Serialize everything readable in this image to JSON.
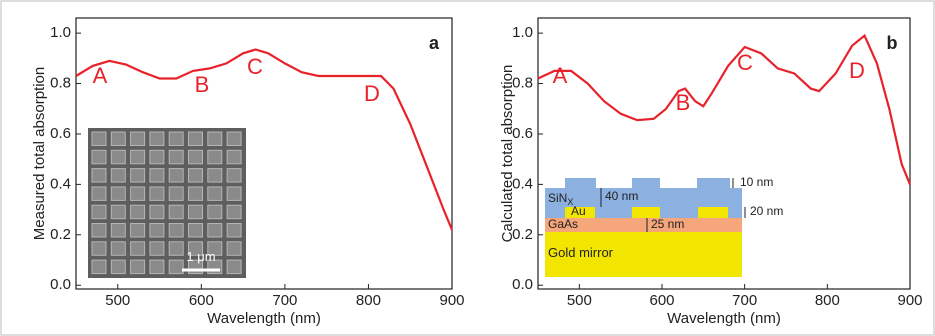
{
  "chart_data": [
    {
      "type": "line",
      "panel_label": "a",
      "xlabel": "Wavelength (nm)",
      "ylabel": "Measured total absorption",
      "x": [
        450,
        470,
        490,
        510,
        530,
        550,
        570,
        590,
        610,
        630,
        650,
        665,
        680,
        700,
        720,
        740,
        760,
        780,
        800,
        815,
        830,
        850,
        870,
        890,
        900
      ],
      "values": [
        0.83,
        0.87,
        0.89,
        0.875,
        0.845,
        0.82,
        0.82,
        0.85,
        0.86,
        0.88,
        0.92,
        0.935,
        0.92,
        0.88,
        0.845,
        0.83,
        0.83,
        0.83,
        0.83,
        0.83,
        0.78,
        0.64,
        0.47,
        0.3,
        0.22
      ],
      "color": "#e8222a",
      "xlim": [
        450,
        900
      ],
      "ylim": [
        -0.015,
        1.06
      ],
      "xticks": [
        500,
        600,
        700,
        800,
        900
      ],
      "yticks": [
        {
          "value": 0,
          "label": "0.0"
        },
        {
          "value": 0.2,
          "label": "0.2"
        },
        {
          "value": 0.4,
          "label": "0.4"
        },
        {
          "value": 0.6,
          "label": "0.6"
        },
        {
          "value": 0.8,
          "label": "0.8"
        },
        {
          "value": 1,
          "label": "1.0"
        }
      ],
      "annotations": [
        "A",
        "B",
        "C",
        "D"
      ],
      "inset_labels": [
        "1 μm"
      ]
    },
    {
      "type": "line",
      "panel_label": "b",
      "xlabel": "Wavelength (nm)",
      "ylabel": "Calculated total absorption",
      "x": [
        450,
        470,
        490,
        510,
        530,
        550,
        570,
        590,
        605,
        620,
        628,
        640,
        650,
        660,
        680,
        700,
        720,
        740,
        760,
        780,
        790,
        810,
        830,
        845,
        860,
        875,
        890,
        900
      ],
      "values": [
        0.82,
        0.85,
        0.85,
        0.8,
        0.73,
        0.68,
        0.655,
        0.66,
        0.7,
        0.77,
        0.78,
        0.73,
        0.71,
        0.76,
        0.87,
        0.945,
        0.92,
        0.86,
        0.84,
        0.78,
        0.77,
        0.84,
        0.95,
        0.99,
        0.88,
        0.7,
        0.48,
        0.4
      ],
      "color": "#e8222a",
      "xlim": [
        450,
        900
      ],
      "ylim": [
        -0.015,
        1.06
      ],
      "xticks": [
        500,
        600,
        700,
        800,
        900
      ],
      "yticks": [
        {
          "value": 0,
          "label": "0.0"
        },
        {
          "value": 0.2,
          "label": "0.2"
        },
        {
          "value": 0.4,
          "label": "0.4"
        },
        {
          "value": 0.6,
          "label": "0.6"
        },
        {
          "value": 0.8,
          "label": "0.8"
        },
        {
          "value": 1,
          "label": "1.0"
        }
      ],
      "annotations": [
        "A",
        "B",
        "C",
        "D"
      ],
      "inset_labels": [
        "10 nm",
        "SiN",
        "X",
        "40 nm",
        "Au",
        "20 nm",
        "GaAs",
        "25 nm",
        "Gold mirror"
      ]
    }
  ]
}
